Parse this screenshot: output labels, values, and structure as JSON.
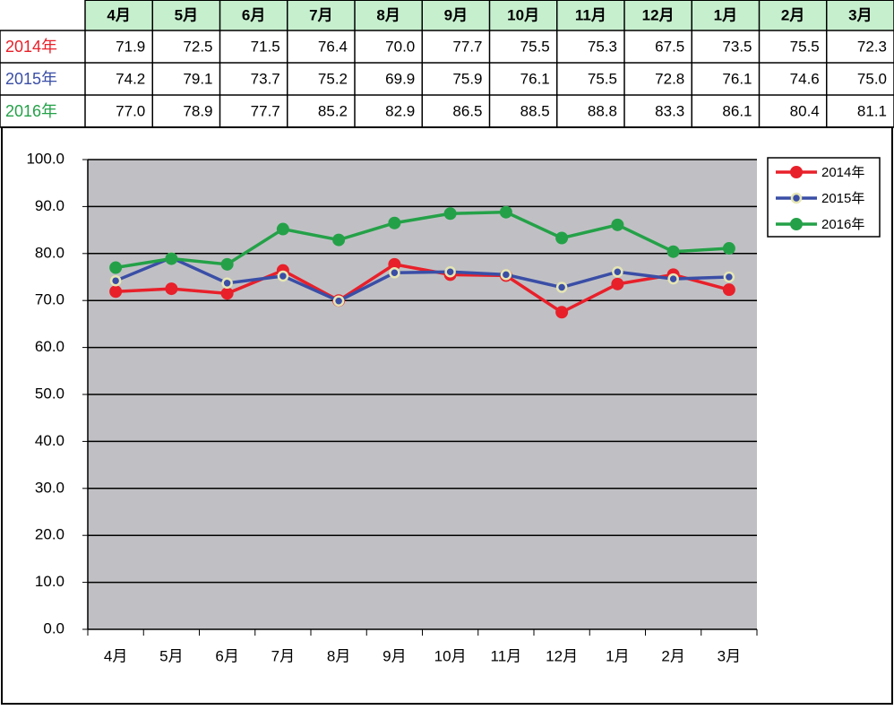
{
  "chart_data": {
    "type": "line",
    "categories": [
      "4月",
      "5月",
      "6月",
      "7月",
      "8月",
      "9月",
      "10月",
      "11月",
      "12月",
      "1月",
      "2月",
      "3月"
    ],
    "series": [
      {
        "name": "2014年",
        "color": "#e8202a",
        "values": [
          71.9,
          72.5,
          71.5,
          76.4,
          70.0,
          77.7,
          75.5,
          75.3,
          67.5,
          73.5,
          75.5,
          72.3
        ],
        "value_labels": [
          "71.9",
          "72.5",
          "71.5",
          "76.4",
          "70.0",
          "77.7",
          "75.5",
          "75.3",
          "67.5",
          "73.5",
          "75.5",
          "72.3"
        ]
      },
      {
        "name": "2015年",
        "color": "#3a4ea6",
        "values": [
          74.2,
          79.1,
          73.7,
          75.2,
          69.9,
          75.9,
          76.1,
          75.5,
          72.8,
          76.1,
          74.6,
          75.0
        ],
        "value_labels": [
          "74.2",
          "79.1",
          "73.7",
          "75.2",
          "69.9",
          "75.9",
          "76.1",
          "75.5",
          "72.8",
          "76.1",
          "74.6",
          "75.0"
        ]
      },
      {
        "name": "2016年",
        "color": "#24a148",
        "values": [
          77.0,
          78.9,
          77.7,
          85.2,
          82.9,
          86.5,
          88.5,
          88.8,
          83.3,
          86.1,
          80.4,
          81.1
        ],
        "value_labels": [
          "77.0",
          "78.9",
          "77.7",
          "85.2",
          "82.9",
          "86.5",
          "88.5",
          "88.8",
          "83.3",
          "86.1",
          "80.4",
          "81.1"
        ]
      }
    ],
    "ylim": [
      0,
      100
    ],
    "yticks": [
      {
        "value": 0,
        "label": "0.0"
      },
      {
        "value": 10,
        "label": "10.0"
      },
      {
        "value": 20,
        "label": "20.0"
      },
      {
        "value": 30,
        "label": "30.0"
      },
      {
        "value": 40,
        "label": "40.0"
      },
      {
        "value": 50,
        "label": "50.0"
      },
      {
        "value": 60,
        "label": "60.0"
      },
      {
        "value": 70,
        "label": "70.0"
      },
      {
        "value": 80,
        "label": "80.0"
      },
      {
        "value": 90,
        "label": "90.0"
      },
      {
        "value": 100,
        "label": "100.0"
      }
    ],
    "grid": true,
    "legend": "top-right"
  }
}
